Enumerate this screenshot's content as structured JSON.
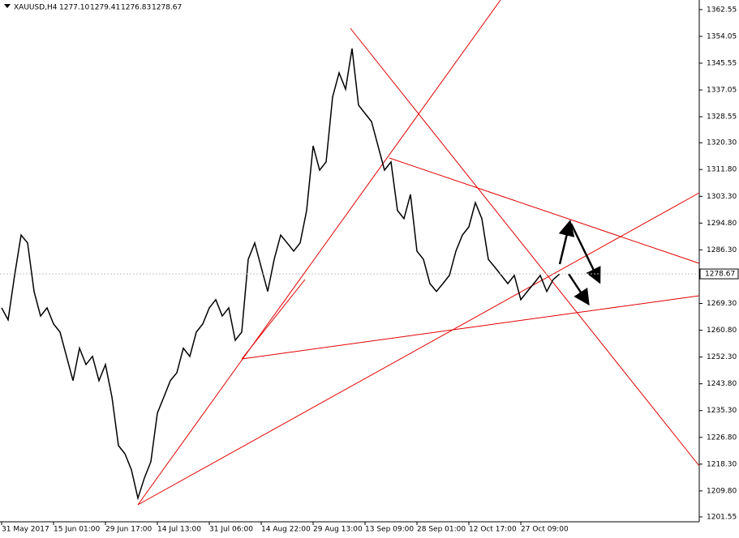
{
  "chart_data": {
    "type": "line",
    "title": "XAUUSD,H4",
    "ohlc": [
      "1277.10",
      "1279.41",
      "1276.83",
      "1278.67"
    ],
    "categories": [
      "31 May 2017",
      null,
      null,
      null,
      null,
      null,
      null,
      null,
      "15 Jun 01:00",
      null,
      null,
      null,
      null,
      null,
      null,
      null,
      "29 Jun 17:00",
      null,
      null,
      null,
      null,
      null,
      null,
      null,
      "14 Jul 13:00",
      null,
      null,
      null,
      null,
      null,
      null,
      null,
      "31 Jul 06:00",
      null,
      null,
      null,
      null,
      null,
      null,
      null,
      "14 Aug 22:00",
      null,
      null,
      null,
      null,
      null,
      null,
      null,
      "29 Aug 13:00",
      null,
      null,
      null,
      null,
      null,
      null,
      null,
      "13 Sep 09:00",
      null,
      null,
      null,
      null,
      null,
      null,
      null,
      "28 Sep 01:00",
      null,
      null,
      null,
      null,
      null,
      null,
      null,
      "12 Oct 17:00",
      null,
      null,
      null,
      null,
      null,
      null,
      null,
      "27 Oct 09:00",
      null,
      null,
      null,
      null,
      null,
      null
    ],
    "series": [
      {
        "name": "XAUUSD,H4",
        "color": "#000000",
        "values": [
          1267.9,
          1264.1,
          1278.2,
          1291.0,
          1288.5,
          1273.1,
          1265.3,
          1267.9,
          1262.8,
          1260.2,
          1252.5,
          1244.8,
          1255.1,
          1249.9,
          1252.5,
          1244.8,
          1249.9,
          1239.6,
          1224.2,
          1221.6,
          1216.5,
          1207.5,
          1213.9,
          1219.1,
          1234.5,
          1239.6,
          1244.8,
          1247.3,
          1255.1,
          1252.5,
          1260.2,
          1262.8,
          1267.9,
          1270.5,
          1265.3,
          1267.9,
          1257.6,
          1260.2,
          1283.3,
          1288.5,
          1280.8,
          1273.1,
          1283.3,
          1291.0,
          1288.5,
          1285.9,
          1288.5,
          1298.8,
          1319.3,
          1311.6,
          1314.2,
          1334.8,
          1342.5,
          1337.3,
          1350.2,
          1332.2,
          1329.6,
          1327.0,
          1319.3,
          1311.6,
          1314.2,
          1298.8,
          1296.2,
          1303.9,
          1285.9,
          1283.3,
          1275.6,
          1273.1,
          1275.6,
          1278.2,
          1285.9,
          1291.0,
          1293.6,
          1301.3,
          1296.2,
          1283.3,
          1280.8,
          1278.2,
          1275.6,
          1278.2,
          1270.5,
          1273.1,
          1275.6,
          1278.2,
          1273.1,
          1276.9,
          1278.67
        ]
      }
    ],
    "ylim": [
      1200.0,
      1365.6
    ],
    "yticks": [
      1362.55,
      1354.05,
      1345.55,
      1337.05,
      1328.55,
      {
        "value": 1320.3,
        "label": "1320.30"
      },
      {
        "value": 1311.8,
        "label": "1311.80"
      },
      {
        "value": 1303.3,
        "label": "1303.30"
      },
      {
        "value": 1294.8,
        "label": "1294.80"
      },
      {
        "value": 1286.3,
        "label": "1286.30"
      },
      {
        "value": 1269.3,
        "label": "1269.30"
      },
      {
        "value": 1260.8,
        "label": "1260.80"
      },
      {
        "value": 1252.3,
        "label": "1252.30"
      },
      {
        "value": 1243.8,
        "label": "1243.80"
      },
      {
        "value": 1235.3,
        "label": "1235.30"
      },
      {
        "value": 1226.8,
        "label": "1226.80"
      },
      {
        "value": 1218.3,
        "label": "1218.30"
      },
      {
        "value": 1209.8,
        "label": "1209.80"
      },
      1201.55
    ]
  }
}
